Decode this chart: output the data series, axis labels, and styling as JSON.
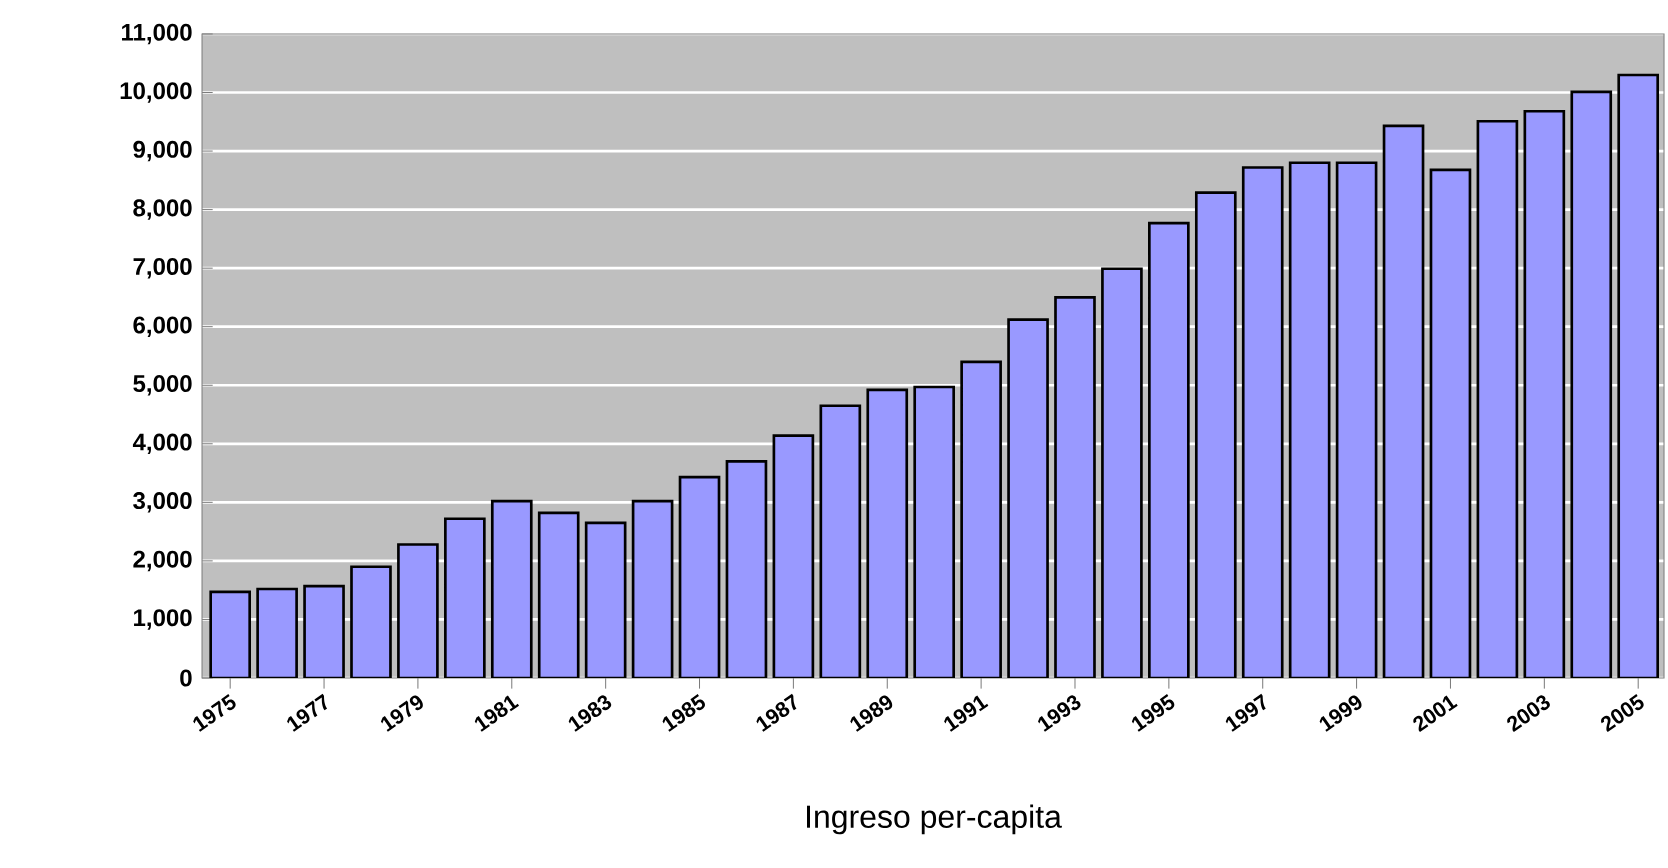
{
  "chart_data": {
    "type": "bar",
    "xlabel": "Ingreso per-capita",
    "categories": [
      "1975",
      null,
      "1977",
      null,
      "1979",
      null,
      "1981",
      null,
      "1983",
      null,
      "1985",
      null,
      "1987",
      null,
      "1989",
      null,
      "1991",
      null,
      "1993",
      null,
      "1995",
      null,
      "1997",
      null,
      "1999",
      null,
      "2001",
      null,
      "2003",
      null,
      "2005"
    ],
    "values": [
      1470,
      1520,
      1570,
      1900,
      2280,
      2720,
      3020,
      2820,
      2650,
      3020,
      3430,
      3700,
      4140,
      4650,
      4920,
      4970,
      5400,
      6120,
      6500,
      6990,
      7770,
      8290,
      8720,
      8800,
      8800,
      9430,
      8680,
      9510,
      9680,
      10010,
      10300
    ],
    "color": "#9999ff",
    "ylim": [
      0,
      11000
    ],
    "yticks": [
      {
        "value": 0,
        "label": "0"
      },
      {
        "value": 1000,
        "label": "1,000"
      },
      {
        "value": 2000,
        "label": "2,000"
      },
      {
        "value": 3000,
        "label": "3,000"
      },
      {
        "value": 4000,
        "label": "4,000"
      },
      {
        "value": 5000,
        "label": "5,000"
      },
      {
        "value": 6000,
        "label": "6,000"
      },
      {
        "value": 7000,
        "label": "7,000"
      },
      {
        "value": 8000,
        "label": "8,000"
      },
      {
        "value": 9000,
        "label": "9,000"
      },
      {
        "value": 10000,
        "label": "10,000"
      },
      {
        "value": 11000,
        "label": "11,000"
      }
    ],
    "grid": "y"
  }
}
